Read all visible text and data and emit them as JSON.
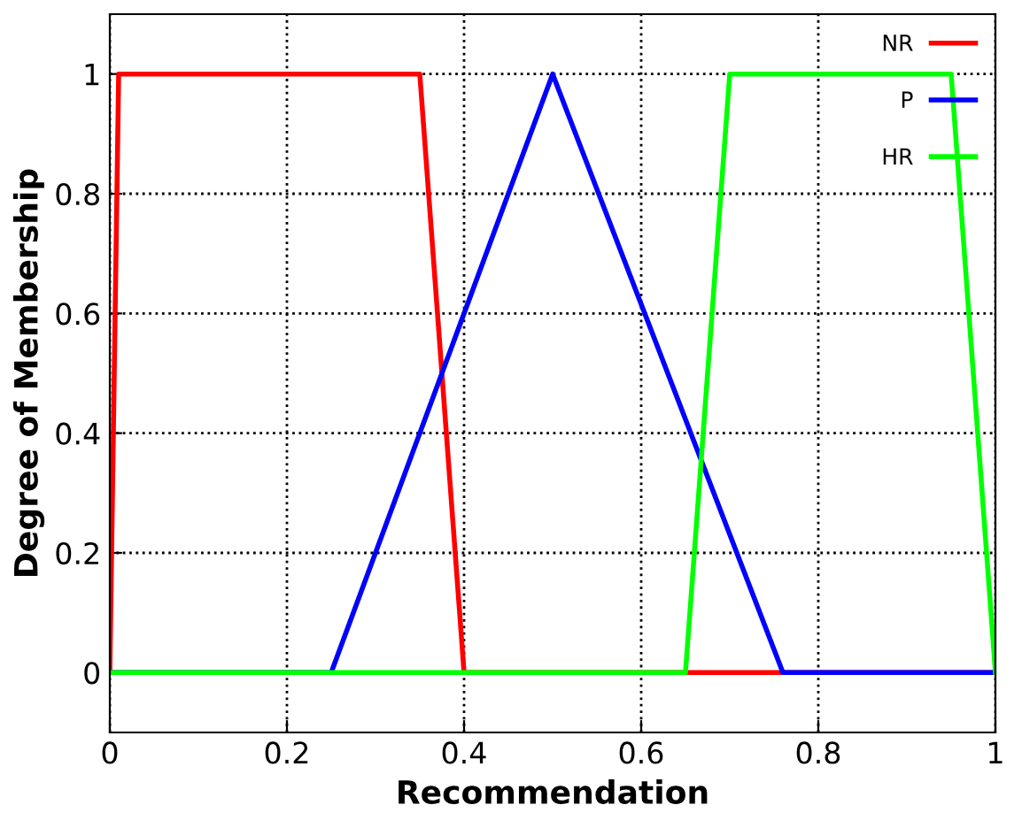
{
  "chart_data": {
    "type": "line",
    "xlabel": "Recommendation",
    "ylabel": "Degree of Membership",
    "series": [
      {
        "name": "NR",
        "color": "#ff0000",
        "x": [
          0,
          0.01,
          0.35,
          0.4,
          1
        ],
        "values": [
          0,
          1,
          1,
          0,
          0
        ]
      },
      {
        "name": "P",
        "color": "#0000ff",
        "x": [
          0,
          0.25,
          0.5,
          0.76,
          1
        ],
        "values": [
          0,
          0,
          1,
          0,
          0
        ]
      },
      {
        "name": "HR",
        "color": "#00ff00",
        "x": [
          0,
          0.65,
          0.7,
          0.95,
          1
        ],
        "values": [
          0,
          0,
          1,
          1,
          0
        ]
      }
    ],
    "xlim": [
      0,
      1
    ],
    "ylim": [
      -0.1,
      1.1
    ],
    "xticks": [
      0,
      0.2,
      0.4,
      0.6,
      0.8,
      1
    ],
    "yticks": [
      0,
      0.2,
      0.4,
      0.6,
      0.8,
      1
    ],
    "grid": true,
    "legend": "top right",
    "line_style": "solid",
    "marker": "none"
  }
}
